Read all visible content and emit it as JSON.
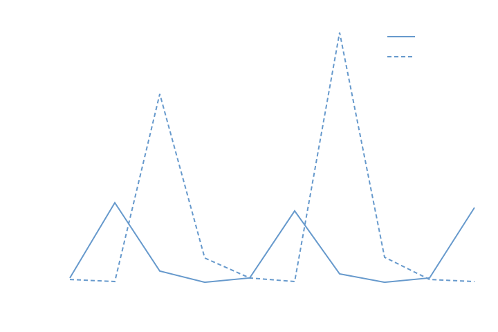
{
  "chart_data": {
    "type": "line",
    "categories": [
      null,
      null,
      null,
      null,
      null,
      null,
      null,
      null,
      null,
      null
    ],
    "series": [
      {
        "color": "#6699cc",
        "style": "solid",
        "values": [
          2.2,
          31.6,
          4.9,
          0.5,
          2.2,
          28.4,
          3.8,
          0.5,
          2.2,
          29.7
        ]
      },
      {
        "color": "#6699cc",
        "style": "dashed",
        "values": [
          1.6,
          0.8,
          74.1,
          10,
          2.2,
          0.8,
          98.1,
          10.3,
          1.6,
          0.8
        ]
      }
    ],
    "ylim": [
      0,
      100
    ],
    "grid": false,
    "legend": "upper right"
  }
}
